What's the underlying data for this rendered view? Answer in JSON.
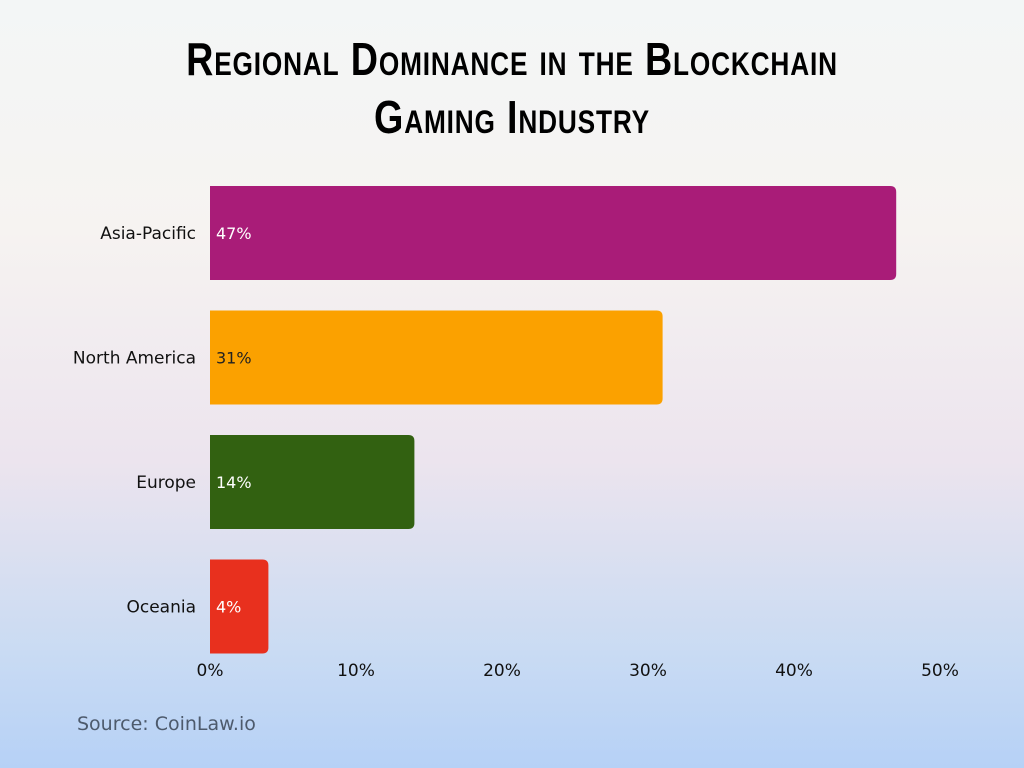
{
  "chart_data": {
    "type": "bar",
    "orientation": "horizontal",
    "title": "Regional Dominance in the Blockchain Gaming Industry",
    "title_lines": [
      "Regional Dominance in the Blockchain",
      "Gaming Industry"
    ],
    "categories": [
      "Asia-Pacific",
      "North America",
      "Europe",
      "Oceania"
    ],
    "values": [
      47,
      31,
      14,
      4
    ],
    "data_labels": [
      "47%",
      "31%",
      "14%",
      "4%"
    ],
    "colors": [
      "#a91c78",
      "#fba100",
      "#326111",
      "#e8301e"
    ],
    "label_colors": [
      "#ffffff",
      "#222222",
      "#ffffff",
      "#ffffff"
    ],
    "xlim": [
      0,
      50
    ],
    "xticks": [
      0,
      10,
      20,
      30,
      40,
      50
    ],
    "xtick_labels": [
      "0%",
      "10%",
      "20%",
      "30%",
      "40%",
      "50%"
    ],
    "xlabel": "",
    "ylabel": "",
    "grid": false,
    "legend": "none"
  },
  "source": "Source: CoinLaw.io"
}
